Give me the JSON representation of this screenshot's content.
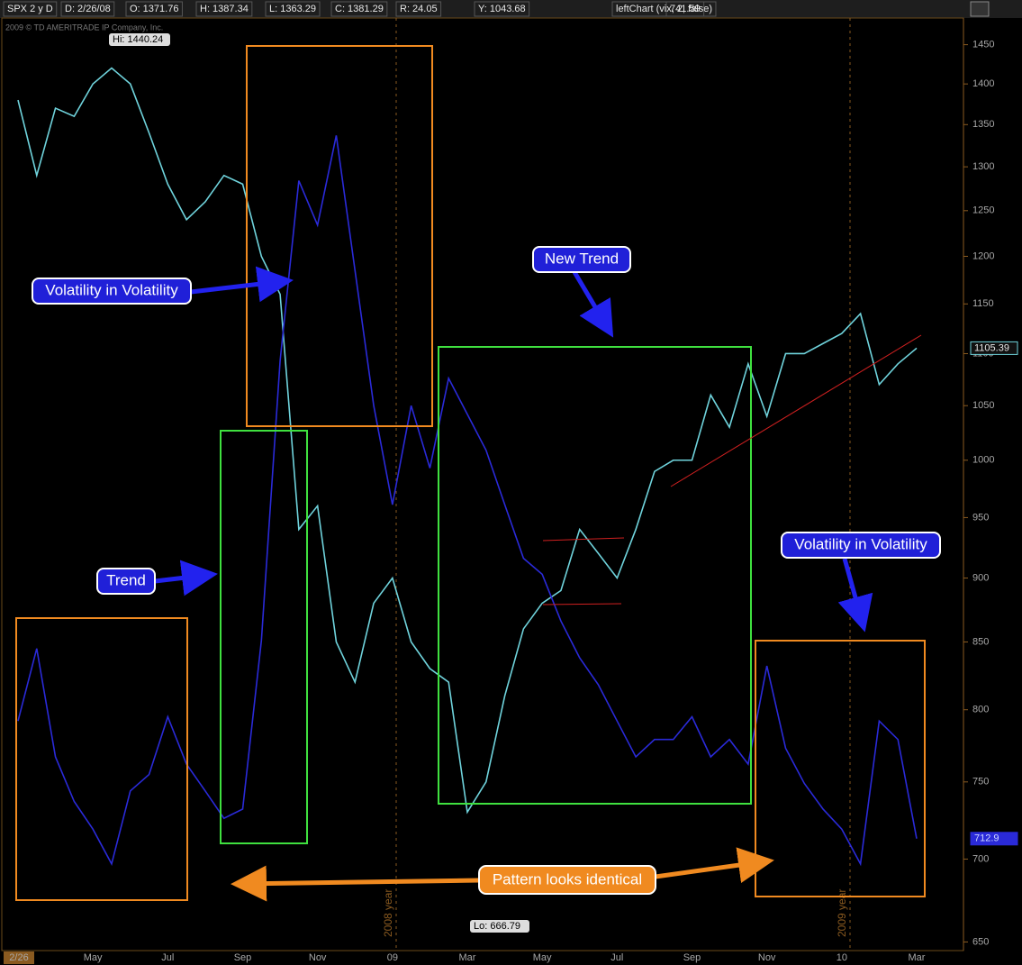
{
  "chart_data": {
    "type": "line",
    "header": [
      "SPX 2 y D",
      "D: 2/26/08",
      "O: 1371.76",
      "H: 1387.34",
      "L: 1363.29",
      "C: 1381.29",
      "R: 24.05",
      "Y: 1043.68",
      "leftChart (vix, 2, false)",
      "741.59"
    ],
    "copyright": "2009 © TD AMERITRADE IP Company, Inc.",
    "categories": [
      "2/26",
      null,
      null,
      null,
      "May",
      null,
      null,
      null,
      "Jul",
      null,
      null,
      null,
      "Sep",
      null,
      null,
      null,
      "Nov",
      null,
      null,
      null,
      "09",
      null,
      null,
      null,
      "Mar",
      null,
      null,
      null,
      "May",
      null,
      null,
      null,
      "Jul",
      null,
      null,
      null,
      "Sep",
      null,
      null,
      null,
      "Nov",
      null,
      null,
      null,
      "10",
      null,
      null,
      null,
      "Mar"
    ],
    "series": [
      {
        "name": "SPX",
        "color": "#6fd3dc",
        "values": [
          1380,
          1290,
          1370,
          1360,
          1400,
          1420,
          1400,
          1340,
          1280,
          1240,
          1260,
          1290,
          1280,
          1200,
          1160,
          940,
          960,
          850,
          820,
          880,
          900,
          850,
          830,
          820,
          730,
          750,
          810,
          860,
          880,
          890,
          940,
          920,
          900,
          940,
          990,
          1000,
          1000,
          1060,
          1030,
          1090,
          1040,
          1100,
          1100,
          1110,
          1120,
          1140,
          1070,
          1090,
          1105.39
        ]
      },
      {
        "name": "vix",
        "color": "#2a2ad8",
        "values": [
          792,
          845,
          767,
          737,
          719,
          697,
          744,
          755,
          795,
          762,
          744,
          726,
          732,
          851,
          1093,
          1284,
          1234,
          1337,
          1185,
          1050,
          961,
          1050,
          993,
          1076,
          1042,
          1009,
          961,
          916,
          903,
          866,
          838,
          818,
          792,
          767,
          779,
          779,
          795,
          767,
          779,
          762,
          832,
          773,
          749,
          732,
          719,
          697,
          792,
          779,
          712.9
        ]
      }
    ],
    "ylim": [
      645,
      1485
    ],
    "log": true,
    "yticks": [
      650,
      700,
      750,
      800,
      850,
      900,
      950,
      1000,
      1050,
      1100,
      1150,
      1200,
      1250,
      1300,
      1350,
      1400,
      1450
    ],
    "hi_label": "Hi: 1440.24",
    "lo_label": "Lo: 666.79",
    "year_labels": [
      "2008 year",
      "2009 year"
    ],
    "annotations": [
      "Volatility in Volatility",
      "New Trend",
      "Trend",
      "Volatility in Volatility",
      "Pattern looks identical"
    ]
  }
}
